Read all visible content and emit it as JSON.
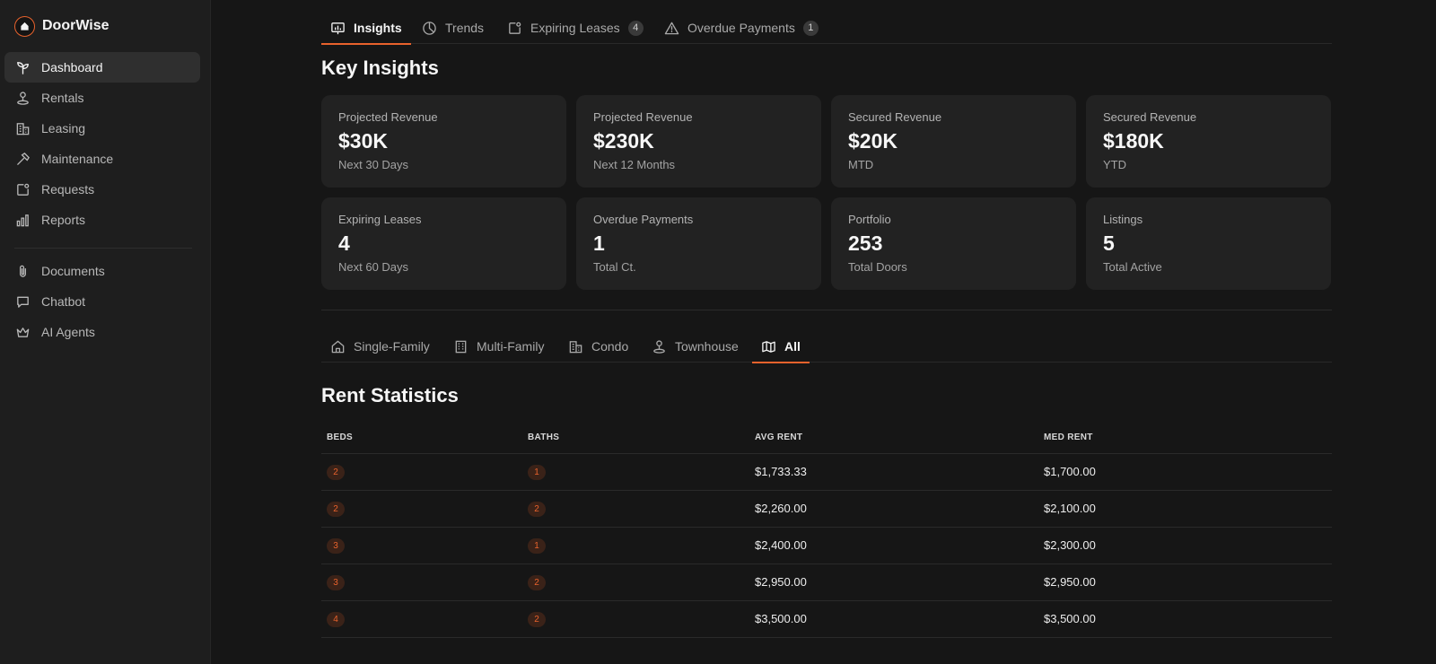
{
  "app": {
    "name": "DoorWise",
    "accent": "#e8622c"
  },
  "sidebar": {
    "items": [
      {
        "label": "Dashboard",
        "icon": "sprout-icon",
        "active": true
      },
      {
        "label": "Rentals",
        "icon": "map-pin-user-icon"
      },
      {
        "label": "Leasing",
        "icon": "buildings-icon"
      },
      {
        "label": "Maintenance",
        "icon": "hammer-icon"
      },
      {
        "label": "Requests",
        "icon": "note-badge-icon"
      },
      {
        "label": "Reports",
        "icon": "bar-chart-icon"
      }
    ],
    "secondary": [
      {
        "label": "Documents",
        "icon": "paperclip-icon"
      },
      {
        "label": "Chatbot",
        "icon": "chat-bubble-icon"
      },
      {
        "label": "AI Agents",
        "icon": "crown-icon"
      }
    ]
  },
  "top_tabs": [
    {
      "label": "Insights",
      "icon": "presentation-chart-icon",
      "active": true
    },
    {
      "label": "Trends",
      "icon": "pie-chart-icon"
    },
    {
      "label": "Expiring Leases",
      "icon": "note-badge-icon",
      "count": "4"
    },
    {
      "label": "Overdue Payments",
      "icon": "warning-icon",
      "count": "1"
    }
  ],
  "key_insights": {
    "title": "Key Insights",
    "cards": [
      {
        "label": "Projected Revenue",
        "value": "$30K",
        "sub": "Next 30 Days"
      },
      {
        "label": "Projected Revenue",
        "value": "$230K",
        "sub": "Next 12 Months"
      },
      {
        "label": "Secured Revenue",
        "value": "$20K",
        "sub": "MTD"
      },
      {
        "label": "Secured Revenue",
        "value": "$180K",
        "sub": "YTD"
      },
      {
        "label": "Expiring Leases",
        "value": "4",
        "sub": "Next 60 Days"
      },
      {
        "label": "Overdue Payments",
        "value": "1",
        "sub": "Total Ct."
      },
      {
        "label": "Portfolio",
        "value": "253",
        "sub": "Total Doors"
      },
      {
        "label": "Listings",
        "value": "5",
        "sub": "Total Active"
      }
    ]
  },
  "property_tabs": [
    {
      "label": "Single-Family",
      "icon": "house-icon"
    },
    {
      "label": "Multi-Family",
      "icon": "apartment-building-icon"
    },
    {
      "label": "Condo",
      "icon": "buildings-icon"
    },
    {
      "label": "Townhouse",
      "icon": "map-pin-user-icon"
    },
    {
      "label": "All",
      "icon": "map-icon",
      "active": true
    }
  ],
  "rent_statistics": {
    "title": "Rent Statistics",
    "columns": [
      "BEDS",
      "BATHS",
      "AVG RENT",
      "MED RENT"
    ],
    "rows": [
      {
        "beds": "2",
        "baths": "1",
        "avg": "$1,733.33",
        "med": "$1,700.00"
      },
      {
        "beds": "2",
        "baths": "2",
        "avg": "$2,260.00",
        "med": "$2,100.00"
      },
      {
        "beds": "3",
        "baths": "1",
        "avg": "$2,400.00",
        "med": "$2,300.00"
      },
      {
        "beds": "3",
        "baths": "2",
        "avg": "$2,950.00",
        "med": "$2,950.00"
      },
      {
        "beds": "4",
        "baths": "2",
        "avg": "$3,500.00",
        "med": "$3,500.00"
      }
    ]
  }
}
